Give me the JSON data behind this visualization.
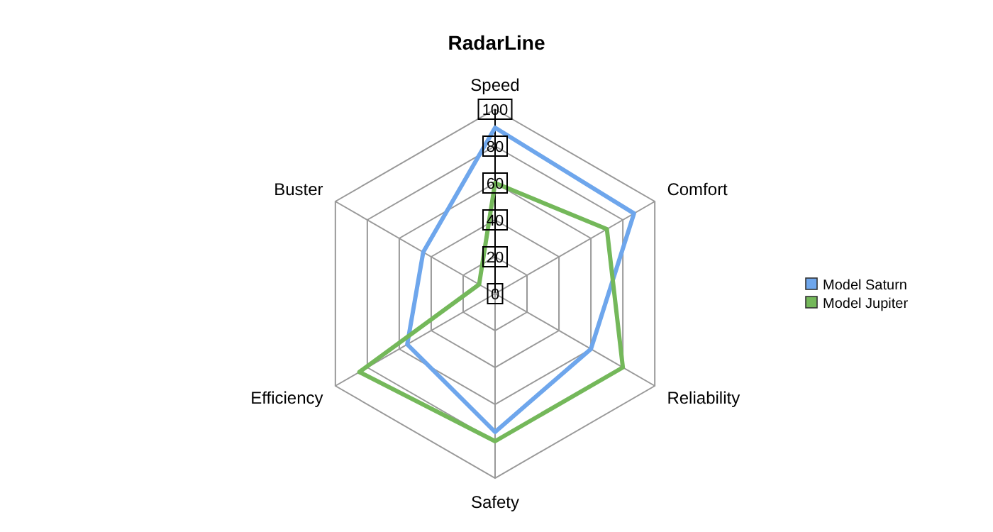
{
  "chart_data": {
    "type": "radar",
    "title": "RadarLine",
    "categories": [
      "Speed",
      "Comfort",
      "Reliability",
      "Safety",
      "Efficiency",
      "Buster"
    ],
    "series": [
      {
        "name": "Model Saturn",
        "color": "#6ea6ec",
        "values": [
          90,
          87,
          60,
          75,
          55,
          45
        ]
      },
      {
        "name": "Model Jupiter",
        "color": "#74b85a",
        "values": [
          60,
          70,
          80,
          80,
          85,
          10
        ]
      }
    ],
    "ylim": [
      0,
      100
    ],
    "yticks": [
      0,
      20,
      40,
      60,
      80,
      100
    ],
    "legend": "right"
  }
}
